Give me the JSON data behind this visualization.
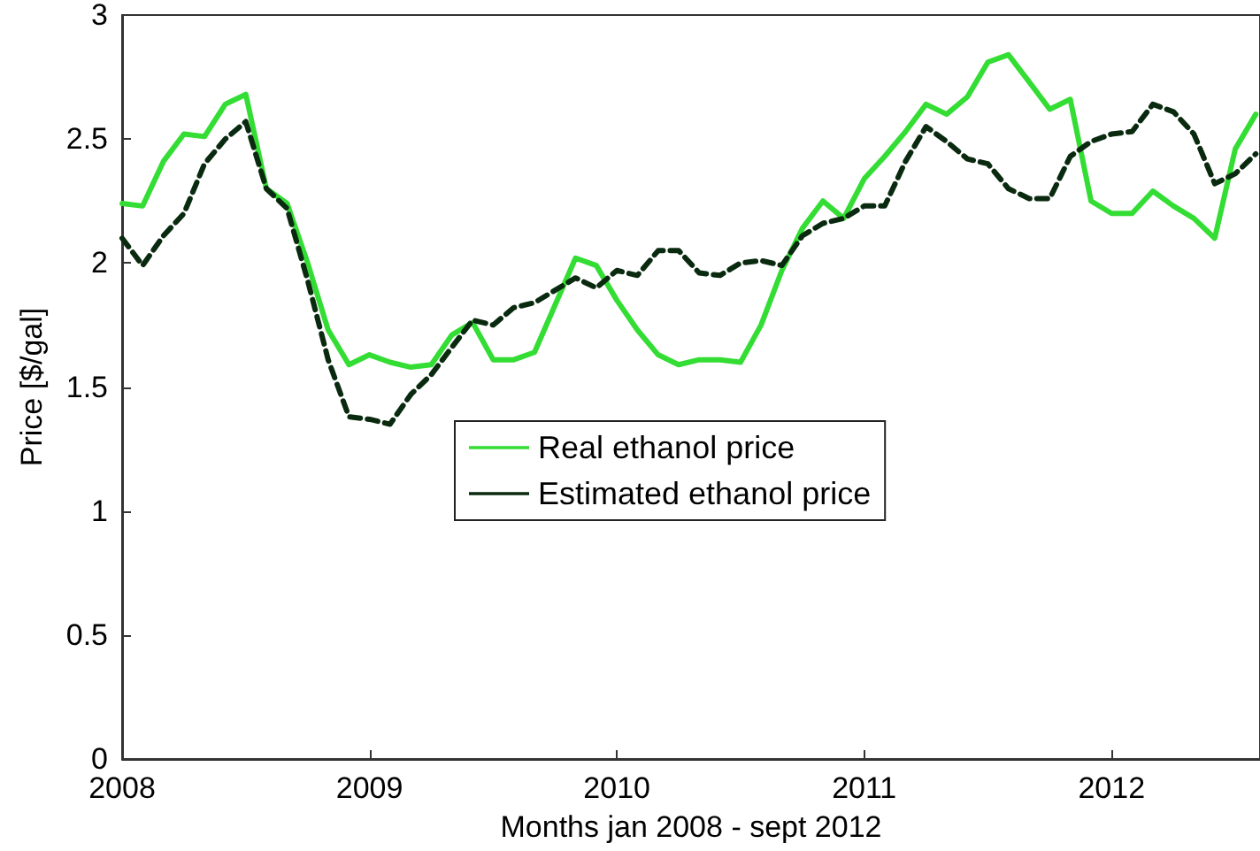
{
  "chart_data": {
    "type": "line",
    "xlabel": "Months jan 2008 - sept 2012",
    "ylabel": "Price [$/gal]",
    "x": [
      2008,
      2008.083,
      2008.167,
      2008.25,
      2008.333,
      2008.417,
      2008.5,
      2008.583,
      2008.667,
      2008.75,
      2008.833,
      2008.917,
      2009,
      2009.083,
      2009.167,
      2009.25,
      2009.333,
      2009.417,
      2009.5,
      2009.583,
      2009.667,
      2009.75,
      2009.833,
      2009.917,
      2010,
      2010.083,
      2010.167,
      2010.25,
      2010.333,
      2010.417,
      2010.5,
      2010.583,
      2010.667,
      2010.75,
      2010.833,
      2010.917,
      2011,
      2011.083,
      2011.167,
      2011.25,
      2011.333,
      2011.417,
      2011.5,
      2011.583,
      2011.667,
      2011.75,
      2011.833,
      2011.917,
      2012,
      2012.083,
      2012.167,
      2012.25,
      2012.333,
      2012.417,
      2012.5,
      2012.583
    ],
    "series": [
      {
        "name": "Real ethanol price",
        "color": "#33dd33",
        "line_style": "solid",
        "values": [
          2.24,
          2.23,
          2.41,
          2.52,
          2.51,
          2.64,
          2.68,
          2.3,
          2.24,
          2.0,
          1.73,
          1.59,
          1.63,
          1.6,
          1.58,
          1.59,
          1.71,
          1.76,
          1.61,
          1.61,
          1.64,
          1.83,
          2.02,
          1.99,
          1.85,
          1.73,
          1.63,
          1.59,
          1.61,
          1.61,
          1.6,
          1.75,
          1.97,
          2.14,
          2.25,
          2.18,
          2.34,
          2.43,
          2.53,
          2.64,
          2.6,
          2.67,
          2.81,
          2.84,
          2.73,
          2.62,
          2.66,
          2.25,
          2.2,
          2.2,
          2.29,
          2.23,
          2.18,
          2.1,
          2.46,
          2.6
        ]
      },
      {
        "name": "Estimated ethanol price",
        "color": "#0a2a10",
        "line_style": "dashed",
        "values": [
          2.1,
          1.99,
          2.11,
          2.2,
          2.4,
          2.5,
          2.57,
          2.3,
          2.22,
          1.93,
          1.61,
          1.38,
          1.37,
          1.35,
          1.47,
          1.55,
          1.66,
          1.77,
          1.75,
          1.82,
          1.84,
          1.89,
          1.94,
          1.9,
          1.97,
          1.95,
          2.05,
          2.05,
          1.96,
          1.95,
          2.0,
          2.01,
          1.99,
          2.11,
          2.16,
          2.18,
          2.23,
          2.23,
          2.41,
          2.55,
          2.49,
          2.42,
          2.4,
          2.3,
          2.26,
          2.26,
          2.43,
          2.49,
          2.52,
          2.53,
          2.64,
          2.61,
          2.52,
          2.32,
          2.36,
          2.44
        ]
      }
    ],
    "xlim": [
      2008,
      2012.6
    ],
    "xticks": [
      2008,
      2009,
      2010,
      2011,
      2012
    ],
    "ylim": [
      0,
      3
    ],
    "yticks": [
      0,
      0.5,
      1,
      1.5,
      2,
      2.5,
      3
    ],
    "grid": false,
    "legend": "center",
    "marker": "none"
  }
}
